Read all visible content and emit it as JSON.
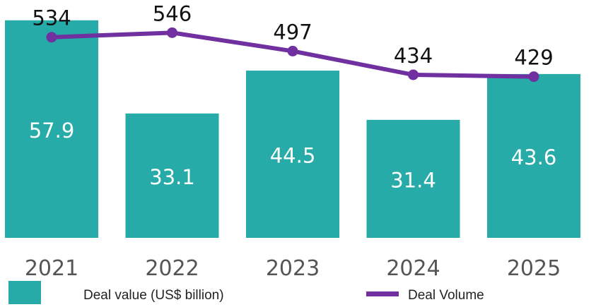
{
  "chart_data": {
    "type": "bar+line",
    "categories": [
      "2021",
      "2022",
      "2023",
      "2024",
      "2025"
    ],
    "series": [
      {
        "name": "Deal value (US$ billion)",
        "type": "bar",
        "axis": "primary",
        "values": [
          57.9,
          33.1,
          44.5,
          31.4,
          43.6
        ],
        "color": "#26ABA8"
      },
      {
        "name": "Deal Volume",
        "type": "line",
        "axis": "secondary",
        "values": [
          534,
          546,
          497,
          434,
          429
        ],
        "color": "#7030A0"
      }
    ],
    "ylim_primary": [
      0,
      63.3
    ],
    "ylim_secondary": [
      0,
      633
    ],
    "grid": false,
    "legend": "bottom",
    "data_labels": true
  }
}
